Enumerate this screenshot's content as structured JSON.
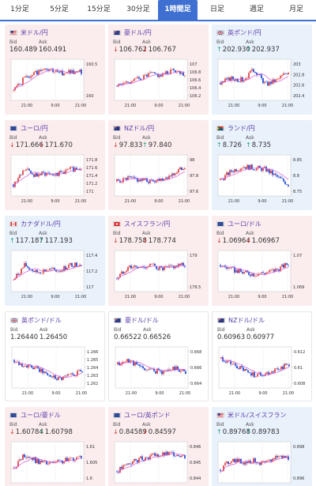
{
  "tabs": [
    {
      "label": "1分足",
      "active": false
    },
    {
      "label": "5分足",
      "active": false
    },
    {
      "label": "15分足",
      "active": false
    },
    {
      "label": "30分足",
      "active": false
    },
    {
      "label": "1時間足",
      "active": true
    },
    {
      "label": "日足",
      "active": false
    },
    {
      "label": "週足",
      "active": false
    },
    {
      "label": "月足",
      "active": false
    }
  ],
  "bid_label": "Bid",
  "ask_label": "Ask",
  "x_ticks": [
    "21:00",
    "9:00",
    "21:00"
  ],
  "colors": {
    "up_candle": "#e0484a",
    "down_candle": "#2b4fd8",
    "ma_line": "#d65ad6",
    "accent": "#3f6fd0"
  },
  "pairs": [
    {
      "name": "米ドル/円",
      "trend": "down",
      "flag": "us",
      "bid": "160.489",
      "ask": "160.491",
      "bid_dir": "",
      "ask_dir": "",
      "y_ticks": [
        "160.5",
        "160"
      ],
      "seed": 1,
      "shape": [
        0.15,
        0.55,
        0.75,
        0.85,
        0.7,
        0.8,
        0.75
      ]
    },
    {
      "name": "豪ドル/円",
      "trend": "down",
      "flag": "au",
      "bid": "106.762",
      "ask": "106.767",
      "bid_dir": "down",
      "ask_dir": "down",
      "y_ticks": [
        "107",
        "106.8",
        "106.6",
        "106.4",
        "106.2"
      ],
      "seed": 2,
      "shape": [
        0.3,
        0.45,
        0.55,
        0.7,
        0.65,
        0.85,
        0.7
      ]
    },
    {
      "name": "英ポンド/円",
      "trend": "up",
      "flag": "uk",
      "bid": "202.930",
      "ask": "202.937",
      "bid_dir": "up",
      "ask_dir": "up",
      "y_ticks": [
        "203",
        "202.8",
        "202.6",
        "202.4"
      ],
      "seed": 3,
      "shape": [
        0.4,
        0.55,
        0.5,
        0.85,
        0.35,
        0.5,
        0.8
      ]
    },
    {
      "name": "ユーロ/円",
      "trend": "down",
      "flag": "eu",
      "bid": "171.666",
      "ask": "171.670",
      "bid_dir": "down",
      "ask_dir": "down",
      "y_ticks": [
        "171.8",
        "171.6",
        "171.4",
        "171.2",
        "171"
      ],
      "seed": 4,
      "shape": [
        0.2,
        0.7,
        0.5,
        0.6,
        0.55,
        0.7,
        0.75
      ]
    },
    {
      "name": "NZドル/円",
      "trend": "down",
      "flag": "nz",
      "bid": "97.833",
      "ask": "97.840",
      "bid_dir": "down",
      "ask_dir": "up",
      "y_ticks": [
        "98",
        "97.8",
        "97.6"
      ],
      "seed": 5,
      "shape": [
        0.3,
        0.4,
        0.35,
        0.3,
        0.4,
        0.55,
        0.8
      ]
    },
    {
      "name": "ランド/円",
      "trend": "up",
      "flag": "za",
      "bid": "8.726",
      "ask": "8.735",
      "bid_dir": "up",
      "ask_dir": "up",
      "y_ticks": [
        "8.85",
        "8.8",
        "8.75"
      ],
      "seed": 6,
      "shape": [
        0.35,
        0.65,
        0.8,
        0.75,
        0.7,
        0.45,
        0.2
      ]
    },
    {
      "name": "カナダドル/円",
      "trend": "up",
      "flag": "ca",
      "bid": "117.187",
      "ask": "117.193",
      "bid_dir": "up",
      "ask_dir": "up",
      "y_ticks": [
        "117.4",
        "117.2",
        "117"
      ],
      "seed": 7,
      "shape": [
        0.2,
        0.7,
        0.45,
        0.55,
        0.5,
        0.7,
        0.75
      ]
    },
    {
      "name": "スイスフラン/円",
      "trend": "down",
      "flag": "ch",
      "bid": "178.758",
      "ask": "178.774",
      "bid_dir": "down",
      "ask_dir": "down",
      "y_ticks": [
        "179",
        "178.5"
      ],
      "seed": 8,
      "shape": [
        0.25,
        0.65,
        0.6,
        0.7,
        0.55,
        0.65,
        0.7
      ]
    },
    {
      "name": "ユーロ/ドル",
      "trend": "down",
      "flag": "eu",
      "bid": "1.06964",
      "ask": "1.06967",
      "bid_dir": "down",
      "ask_dir": "down",
      "y_ticks": [
        "1.07",
        "1.069"
      ],
      "seed": 9,
      "shape": [
        0.7,
        0.55,
        0.45,
        0.4,
        0.45,
        0.55,
        0.75
      ]
    },
    {
      "name": "英ポンド/ドル",
      "trend": "flat",
      "flag": "uk",
      "bid": "1.26440",
      "ask": "1.26450",
      "bid_dir": "",
      "ask_dir": "",
      "y_ticks": [
        "1.266",
        "1.265",
        "1.264",
        "1.263",
        "1.262"
      ],
      "seed": 10,
      "shape": [
        0.75,
        0.55,
        0.45,
        0.25,
        0.15,
        0.25,
        0.4
      ]
    },
    {
      "name": "豪ドル/ドル",
      "trend": "flat",
      "flag": "au",
      "bid": "0.66522",
      "ask": "0.66526",
      "bid_dir": "",
      "ask_dir": "",
      "y_ticks": [
        "0.668",
        "0.666",
        "0.664"
      ],
      "seed": 11,
      "shape": [
        0.6,
        0.75,
        0.5,
        0.4,
        0.35,
        0.5,
        0.35
      ]
    },
    {
      "name": "NZドル/ドル",
      "trend": "flat",
      "flag": "nz",
      "bid": "0.60963",
      "ask": "0.60977",
      "bid_dir": "",
      "ask_dir": "",
      "y_ticks": [
        "0.612",
        "0.61",
        "0.608"
      ],
      "seed": 12,
      "shape": [
        0.8,
        0.6,
        0.4,
        0.25,
        0.3,
        0.45,
        0.6
      ]
    },
    {
      "name": "ユーロ/豪ドル",
      "trend": "down",
      "flag": "eu",
      "bid": "1.60784",
      "ask": "1.60798",
      "bid_dir": "down",
      "ask_dir": "up",
      "y_ticks": [
        "1.61",
        "1.605",
        "1.6"
      ],
      "seed": 13,
      "shape": [
        0.3,
        0.75,
        0.55,
        0.45,
        0.5,
        0.6,
        0.7
      ]
    },
    {
      "name": "ユーロ/英ポンド",
      "trend": "down",
      "flag": "eu",
      "bid": "0.84589",
      "ask": "0.84597",
      "bid_dir": "down",
      "ask_dir": "down",
      "y_ticks": [
        "0.846",
        "0.845",
        "0.844"
      ],
      "seed": 14,
      "shape": [
        0.2,
        0.45,
        0.6,
        0.7,
        0.75,
        0.8,
        0.7
      ]
    },
    {
      "name": "米ドル/スイスフラン",
      "trend": "up",
      "flag": "us",
      "bid": "0.89768",
      "ask": "0.89783",
      "bid_dir": "up",
      "ask_dir": "up",
      "y_ticks": [
        "0.898",
        "0.896"
      ],
      "seed": 15,
      "shape": [
        0.25,
        0.6,
        0.5,
        0.55,
        0.45,
        0.7,
        0.65
      ]
    }
  ]
}
